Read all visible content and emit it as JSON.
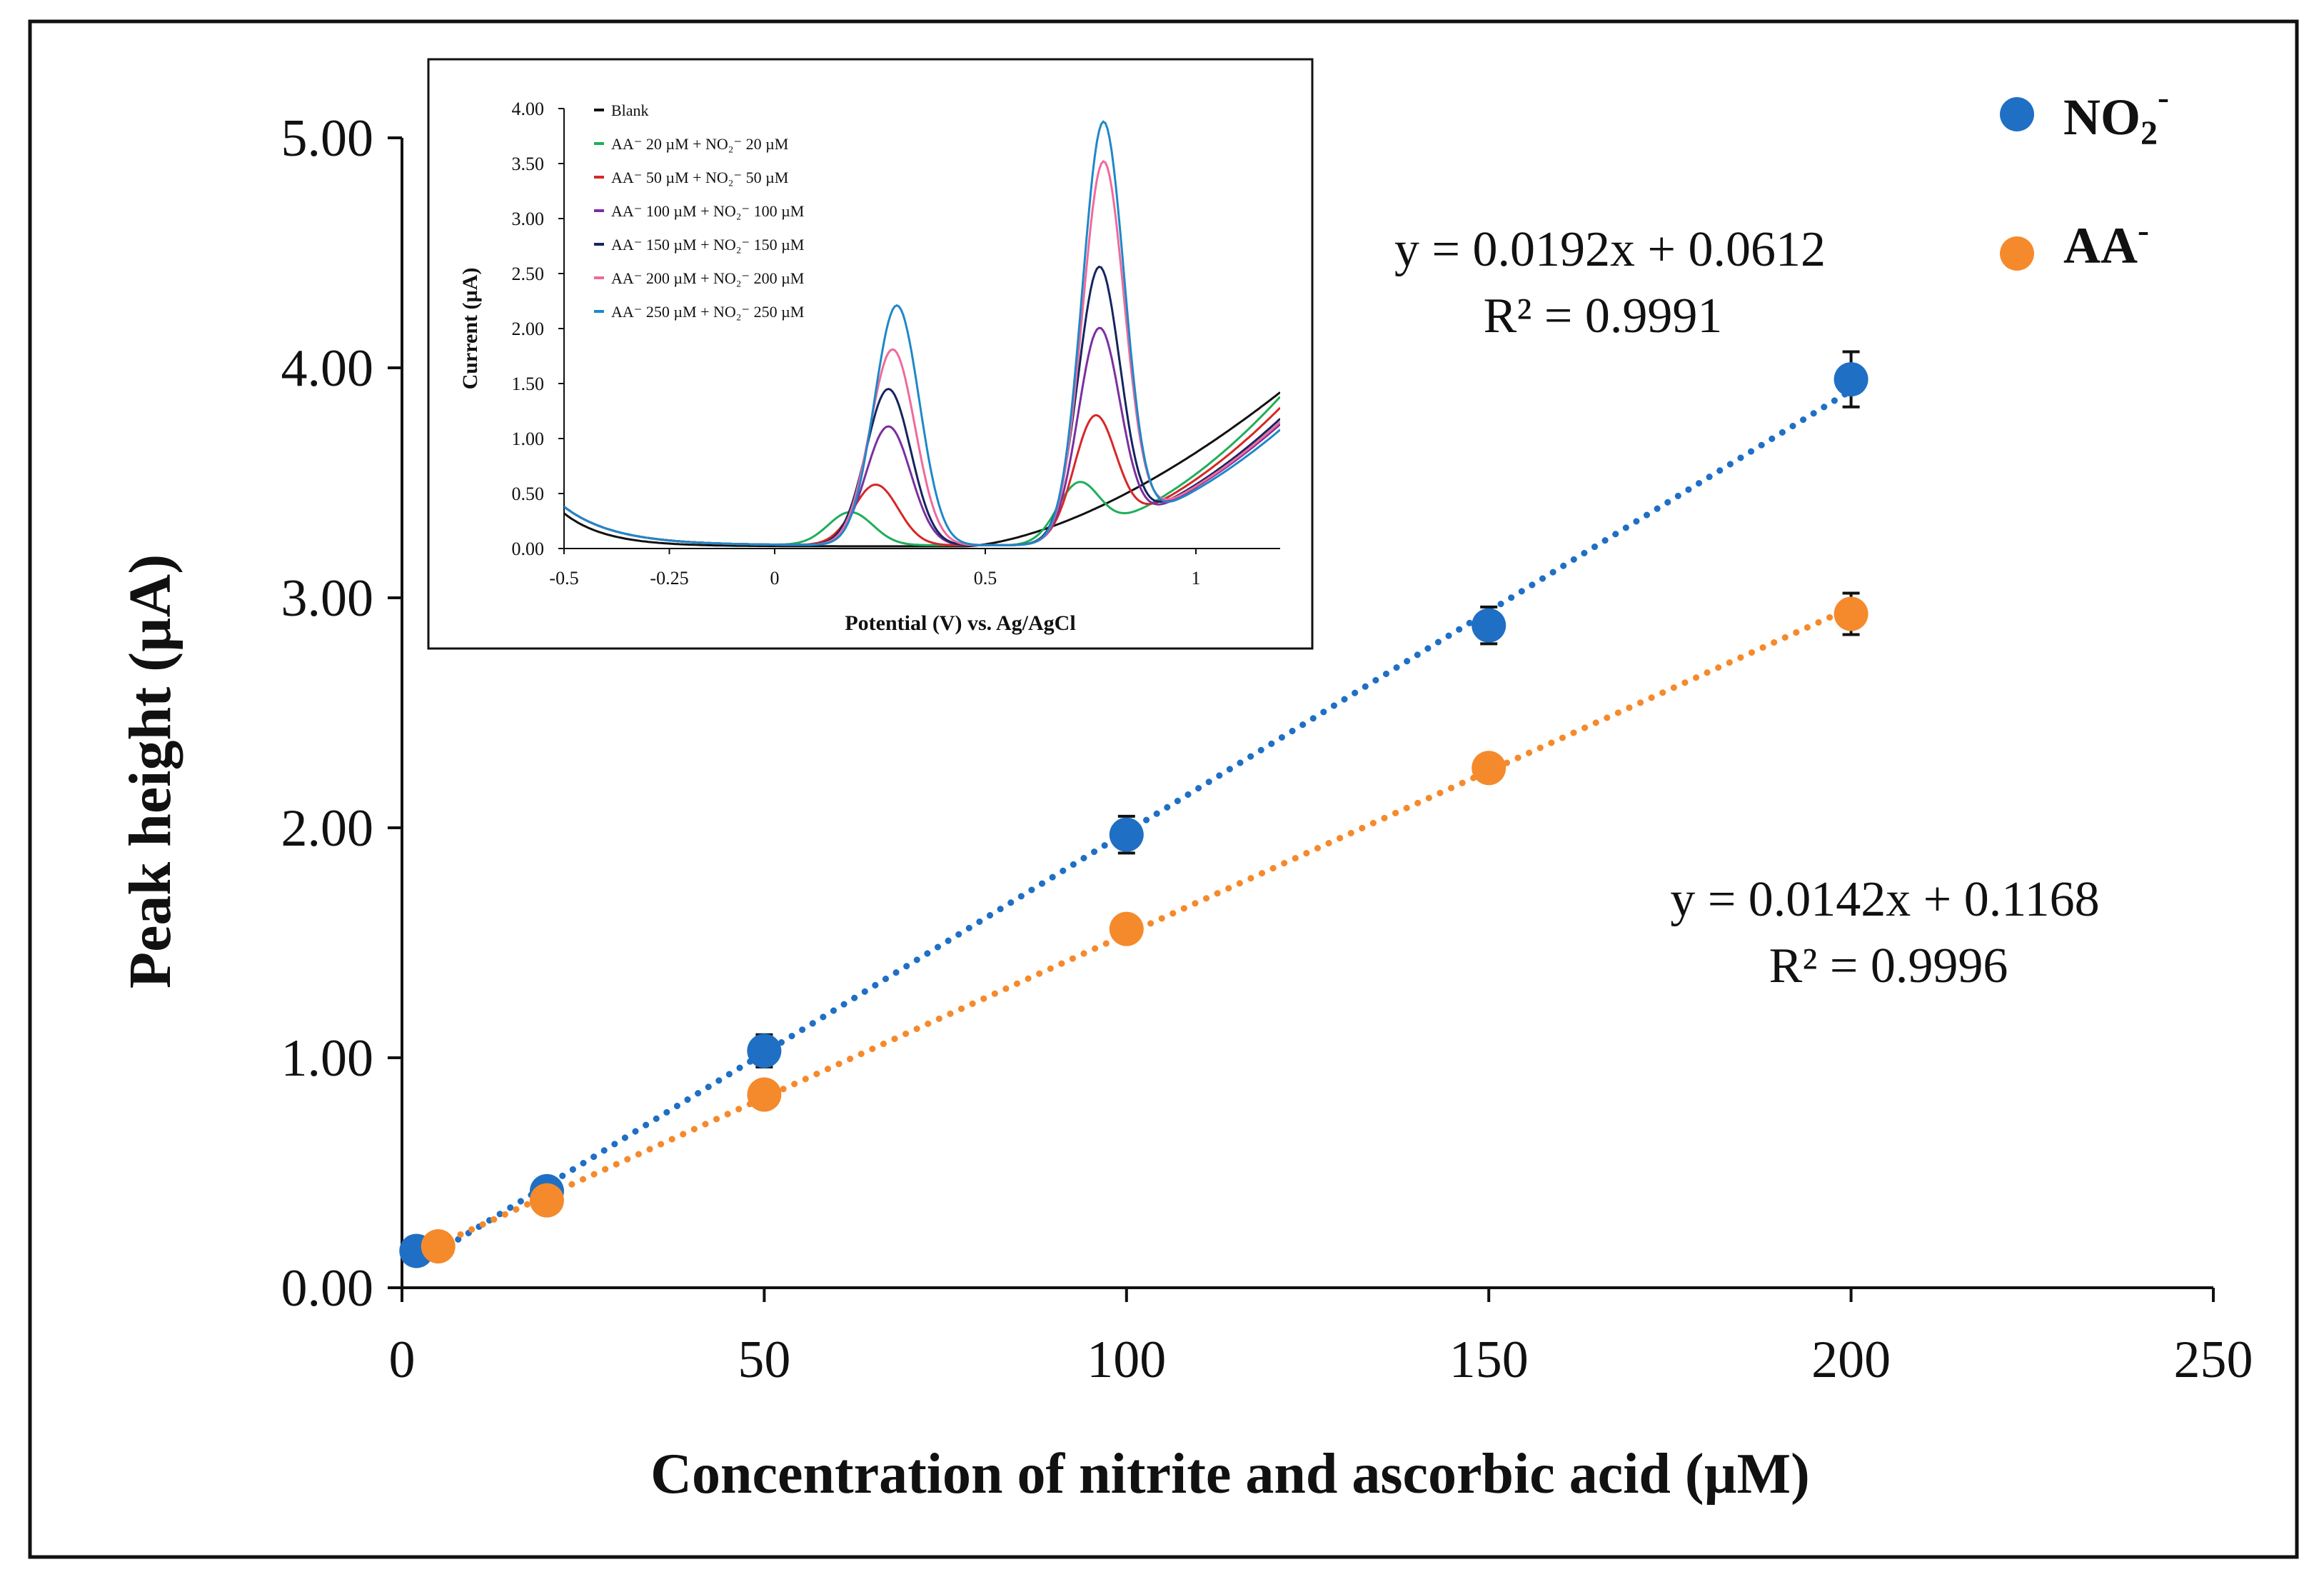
{
  "chart_data": [
    {
      "type": "scatter",
      "title": "",
      "xlabel": "Concentration of nitrite and ascorbic acid (µM)",
      "ylabel": "Peak height (µA)",
      "xlim": [
        0,
        250
      ],
      "ylim": [
        0,
        5
      ],
      "x_ticks": [
        "0",
        "50",
        "100",
        "150",
        "200",
        "250"
      ],
      "y_ticks": [
        "0.00",
        "1.00",
        "2.00",
        "3.00",
        "4.00",
        "5.00"
      ],
      "legend_position": "top-right",
      "series": [
        {
          "name": "NO2-",
          "legend_main": "NO",
          "legend_sub": "2",
          "legend_sup": "-",
          "color": "#1F6FC5",
          "x": [
            2,
            20,
            50,
            100,
            150,
            200
          ],
          "y": [
            0.16,
            0.42,
            1.03,
            1.97,
            2.88,
            3.95
          ],
          "err": [
            0.03,
            0.04,
            0.07,
            0.08,
            0.08,
            0.12
          ],
          "equation": "y = 0.0192x + 0.0612",
          "r2_label": "R² = 0.9991",
          "trend": {
            "slope": 0.0192,
            "intercept": 0.0612,
            "x_start": 2,
            "x_end": 200
          }
        },
        {
          "name": "AA-",
          "legend_main": "AA",
          "legend_sub": "",
          "legend_sup": "-",
          "color": "#F58A2C",
          "x": [
            5,
            20,
            50,
            100,
            150,
            200
          ],
          "y": [
            0.18,
            0.38,
            0.84,
            1.56,
            2.26,
            2.93
          ],
          "err": [
            0.02,
            0.03,
            0.04,
            0.05,
            0.05,
            0.09
          ],
          "equation": "y = 0.0142x + 0.1168",
          "r2_label": "R² = 0.9996",
          "trend": {
            "slope": 0.0142,
            "intercept": 0.1168,
            "x_start": 5,
            "x_end": 200
          }
        }
      ]
    },
    {
      "type": "line",
      "title": "",
      "xlabel": "Potential (V) vs. Ag/AgCl",
      "ylabel": "Current (µA)",
      "xlim": [
        -0.5,
        1.2
      ],
      "ylim": [
        0,
        4
      ],
      "x_ticks": [
        "-0.5",
        "-0.25",
        "0",
        "0.5",
        "1"
      ],
      "y_ticks": [
        "0.00",
        "0.50",
        "1.00",
        "1.50",
        "2.00",
        "2.50",
        "3.00",
        "3.50",
        "4.00"
      ],
      "legend_position": "top-left",
      "series": [
        {
          "name": "Blank",
          "color": "#111111",
          "peak1": 0.0,
          "peak2": 0.0,
          "c1": 0.25,
          "c2": 0.77,
          "tail_end": 1.35,
          "legend_text": "Blank"
        },
        {
          "name": "AA- 20 µM + NO2- 20 µM",
          "color": "#1FAE5A",
          "peak1": 0.3,
          "peak2": 0.48,
          "c1": 0.18,
          "c2": 0.72,
          "tail_end": 1.35,
          "legend_text": "AA⁻ 20 µM + NO₂⁻ 20 µM"
        },
        {
          "name": "AA- 50 µM + NO2- 50 µM",
          "color": "#D62728",
          "peak1": 0.55,
          "peak2": 1.05,
          "c1": 0.24,
          "c2": 0.76,
          "tail_end": 1.25,
          "legend_text": "AA⁻ 50 µM + NO₂⁻ 50 µM"
        },
        {
          "name": "AA- 100 µM + NO2- 100 µM",
          "color": "#7B2FA0",
          "peak1": 1.08,
          "peak2": 1.85,
          "c1": 0.27,
          "c2": 0.77,
          "tail_end": 1.1,
          "legend_text": "AA⁻ 100 µM + NO₂⁻ 100 µM"
        },
        {
          "name": "AA- 150 µM + NO2- 150 µM",
          "color": "#16255E",
          "peak1": 1.42,
          "peak2": 2.4,
          "c1": 0.27,
          "c2": 0.77,
          "tail_end": 1.15,
          "legend_text": "AA⁻ 150 µM + NO₂⁻ 150 µM"
        },
        {
          "name": "AA- 200 µM + NO2- 200 µM",
          "color": "#F06A9C",
          "peak1": 1.78,
          "peak2": 3.35,
          "c1": 0.28,
          "c2": 0.78,
          "tail_end": 1.12,
          "legend_text": "AA⁻ 200 µM + NO₂⁻ 200 µM"
        },
        {
          "name": "AA- 250 µM + NO2- 250 µM",
          "color": "#1E88C8",
          "peak1": 2.18,
          "peak2": 3.72,
          "c1": 0.29,
          "c2": 0.78,
          "tail_end": 1.05,
          "legend_text": "AA⁻ 250 µM + NO₂⁻ 250 µM"
        }
      ]
    }
  ]
}
